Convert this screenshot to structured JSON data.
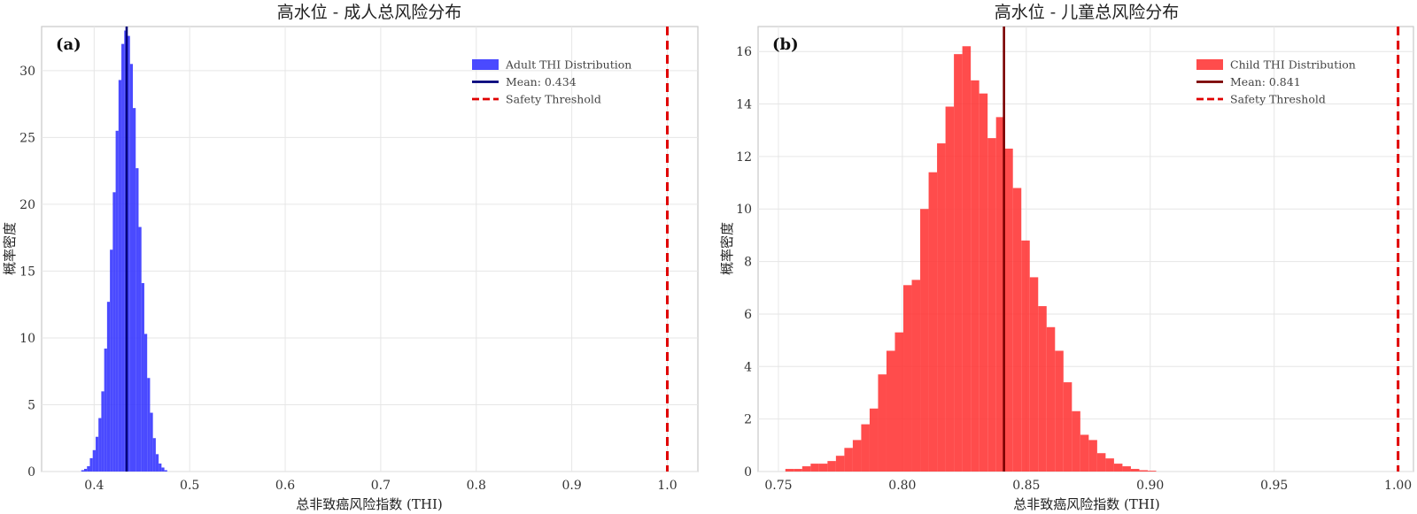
{
  "chart_data": [
    {
      "type": "histogram",
      "panel_label": "(a)",
      "title": "高水位 - 成人总风险分布",
      "xlabel": "总非致癌风险指数 (THI)",
      "ylabel": "概率密度",
      "xlim": [
        0.345,
        1.032
      ],
      "ylim": [
        0,
        33.3
      ],
      "xticks": [
        0.4,
        0.5,
        0.6,
        0.7,
        0.8,
        0.9,
        1.0
      ],
      "xtick_labels": [
        "0.4",
        "0.5",
        "0.6",
        "0.7",
        "0.8",
        "0.9",
        "1.0"
      ],
      "yticks": [
        0,
        5,
        10,
        15,
        20,
        25,
        30
      ],
      "ytick_labels": [
        "0",
        "5",
        "10",
        "15",
        "20",
        "25",
        "30"
      ],
      "grid": true,
      "legend_position": "top-right",
      "bin_edges": [
        0.3865,
        0.3895,
        0.3925,
        0.3955,
        0.3985,
        0.4015,
        0.4045,
        0.4075,
        0.4105,
        0.4135,
        0.4165,
        0.4195,
        0.4225,
        0.4255,
        0.4285,
        0.4315,
        0.4345,
        0.4375,
        0.4405,
        0.4435,
        0.4465,
        0.4495,
        0.4525,
        0.4555,
        0.4585,
        0.4615,
        0.4645,
        0.4675,
        0.4705,
        0.4735,
        0.4765
      ],
      "density": [
        0.1,
        0.2,
        0.4,
        1.0,
        1.6,
        2.6,
        4.0,
        6.0,
        9.2,
        12.7,
        16.6,
        20.9,
        25.5,
        29.3,
        32.0,
        33.0,
        32.6,
        30.5,
        27.2,
        22.7,
        18.3,
        14.1,
        10.3,
        7.0,
        4.4,
        2.5,
        1.3,
        0.6,
        0.3,
        0.1
      ],
      "series": [
        {
          "name": "Adult THI Distribution",
          "color": "#3b3bff",
          "kind": "histogram"
        },
        {
          "name": "Mean: 0.434",
          "value": 0.434,
          "color": "#00007a",
          "kind": "vline-solid"
        },
        {
          "name": "Safety Threshold",
          "value": 1.0,
          "color": "#e00000",
          "kind": "vline-dashed"
        }
      ]
    },
    {
      "type": "histogram",
      "panel_label": "(b)",
      "title": "高水位 - 儿童总风险分布",
      "xlabel": "总非致癌风险指数 (THI)",
      "ylabel": "概率密度",
      "xlim": [
        0.7418,
        1.0062
      ],
      "ylim": [
        0,
        16.95
      ],
      "xticks": [
        0.75,
        0.8,
        0.85,
        0.9,
        0.95,
        1.0
      ],
      "xtick_labels": [
        "0.75",
        "0.80",
        "0.85",
        "0.90",
        "0.95",
        "1.00"
      ],
      "yticks": [
        0,
        2,
        4,
        6,
        8,
        10,
        12,
        14,
        16
      ],
      "ytick_labels": [
        "0",
        "2",
        "4",
        "6",
        "8",
        "10",
        "12",
        "14",
        "16"
      ],
      "grid": true,
      "legend_position": "top-right",
      "bin_edges": [
        0.7528,
        0.7562,
        0.7596,
        0.763,
        0.7664,
        0.7698,
        0.7732,
        0.7766,
        0.78,
        0.7834,
        0.7868,
        0.7902,
        0.7936,
        0.797,
        0.8004,
        0.8038,
        0.8072,
        0.8106,
        0.814,
        0.8174,
        0.8208,
        0.8242,
        0.8276,
        0.831,
        0.8344,
        0.8378,
        0.8412,
        0.8446,
        0.848,
        0.8514,
        0.8548,
        0.8582,
        0.8616,
        0.865,
        0.8684,
        0.8718,
        0.8752,
        0.8786,
        0.882,
        0.8854,
        0.8888,
        0.8922,
        0.8956,
        0.899,
        0.9024,
        0.9058,
        0.9092,
        0.9126,
        0.916,
        0.9194,
        0.9228,
        0.9262,
        0.9296
      ],
      "density": [
        0.1,
        0.1,
        0.2,
        0.3,
        0.3,
        0.4,
        0.6,
        0.9,
        1.2,
        1.8,
        2.4,
        3.7,
        4.6,
        5.3,
        7.1,
        7.3,
        10.0,
        11.4,
        12.5,
        13.9,
        15.9,
        16.2,
        14.9,
        14.4,
        12.7,
        13.5,
        12.3,
        10.8,
        8.8,
        7.4,
        6.3,
        5.5,
        4.6,
        3.4,
        2.3,
        1.4,
        1.2,
        0.7,
        0.5,
        0.3,
        0.2,
        0.1,
        0.05,
        0.03,
        0.0,
        0.0,
        0.0,
        0.0,
        0.0,
        0.0,
        0.0,
        0.0
      ],
      "series": [
        {
          "name": "Child THI Distribution",
          "color": "#ff3333",
          "kind": "histogram"
        },
        {
          "name": "Mean: 0.841",
          "value": 0.841,
          "color": "#7a0000",
          "kind": "vline-solid"
        },
        {
          "name": "Safety Threshold",
          "value": 1.0,
          "color": "#e00000",
          "kind": "vline-dashed"
        }
      ]
    }
  ]
}
